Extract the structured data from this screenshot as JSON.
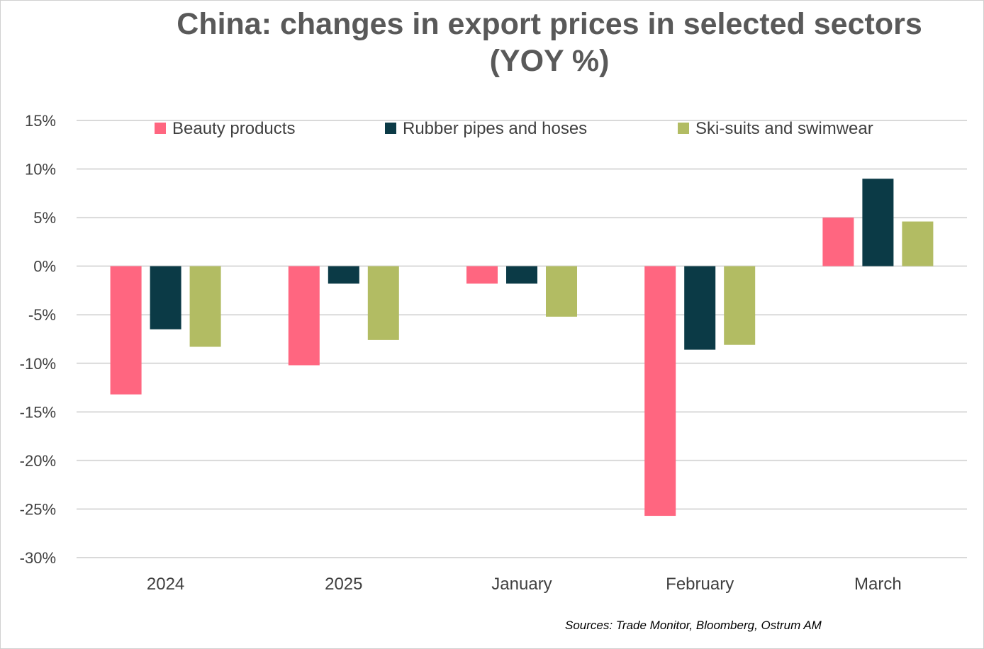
{
  "chart_data": {
    "type": "bar",
    "title": "China: changes in export prices in selected sectors",
    "subtitle": "(YOY %)",
    "xlabel": "",
    "ylabel": "",
    "categories": [
      "2024",
      "2025",
      "January",
      "February",
      "March"
    ],
    "series": [
      {
        "name": "Beauty products",
        "color": "#ff6680",
        "values": [
          -13.2,
          -10.2,
          -1.8,
          -25.7,
          5.0
        ]
      },
      {
        "name": "Rubber pipes and hoses",
        "color": "#0b3a46",
        "values": [
          -6.5,
          -1.8,
          -1.8,
          -8.6,
          9.0
        ]
      },
      {
        "name": "Ski-suits and swimwear",
        "color": "#b2bc63",
        "values": [
          -8.3,
          -7.6,
          -5.2,
          -8.1,
          4.6
        ]
      }
    ],
    "ylim": [
      -30,
      15
    ],
    "yticks": [
      15,
      10,
      5,
      0,
      -5,
      -10,
      -15,
      -20,
      -25,
      -30
    ],
    "ytick_labels": [
      "15%",
      "10%",
      "5%",
      "0%",
      "-5%",
      "-10%",
      "-15%",
      "-20%",
      "-25%",
      "-30%"
    ],
    "grid": true,
    "legend_position": "top"
  },
  "source_note": "Sources: Trade Monitor, Bloomberg, Ostrum AM"
}
